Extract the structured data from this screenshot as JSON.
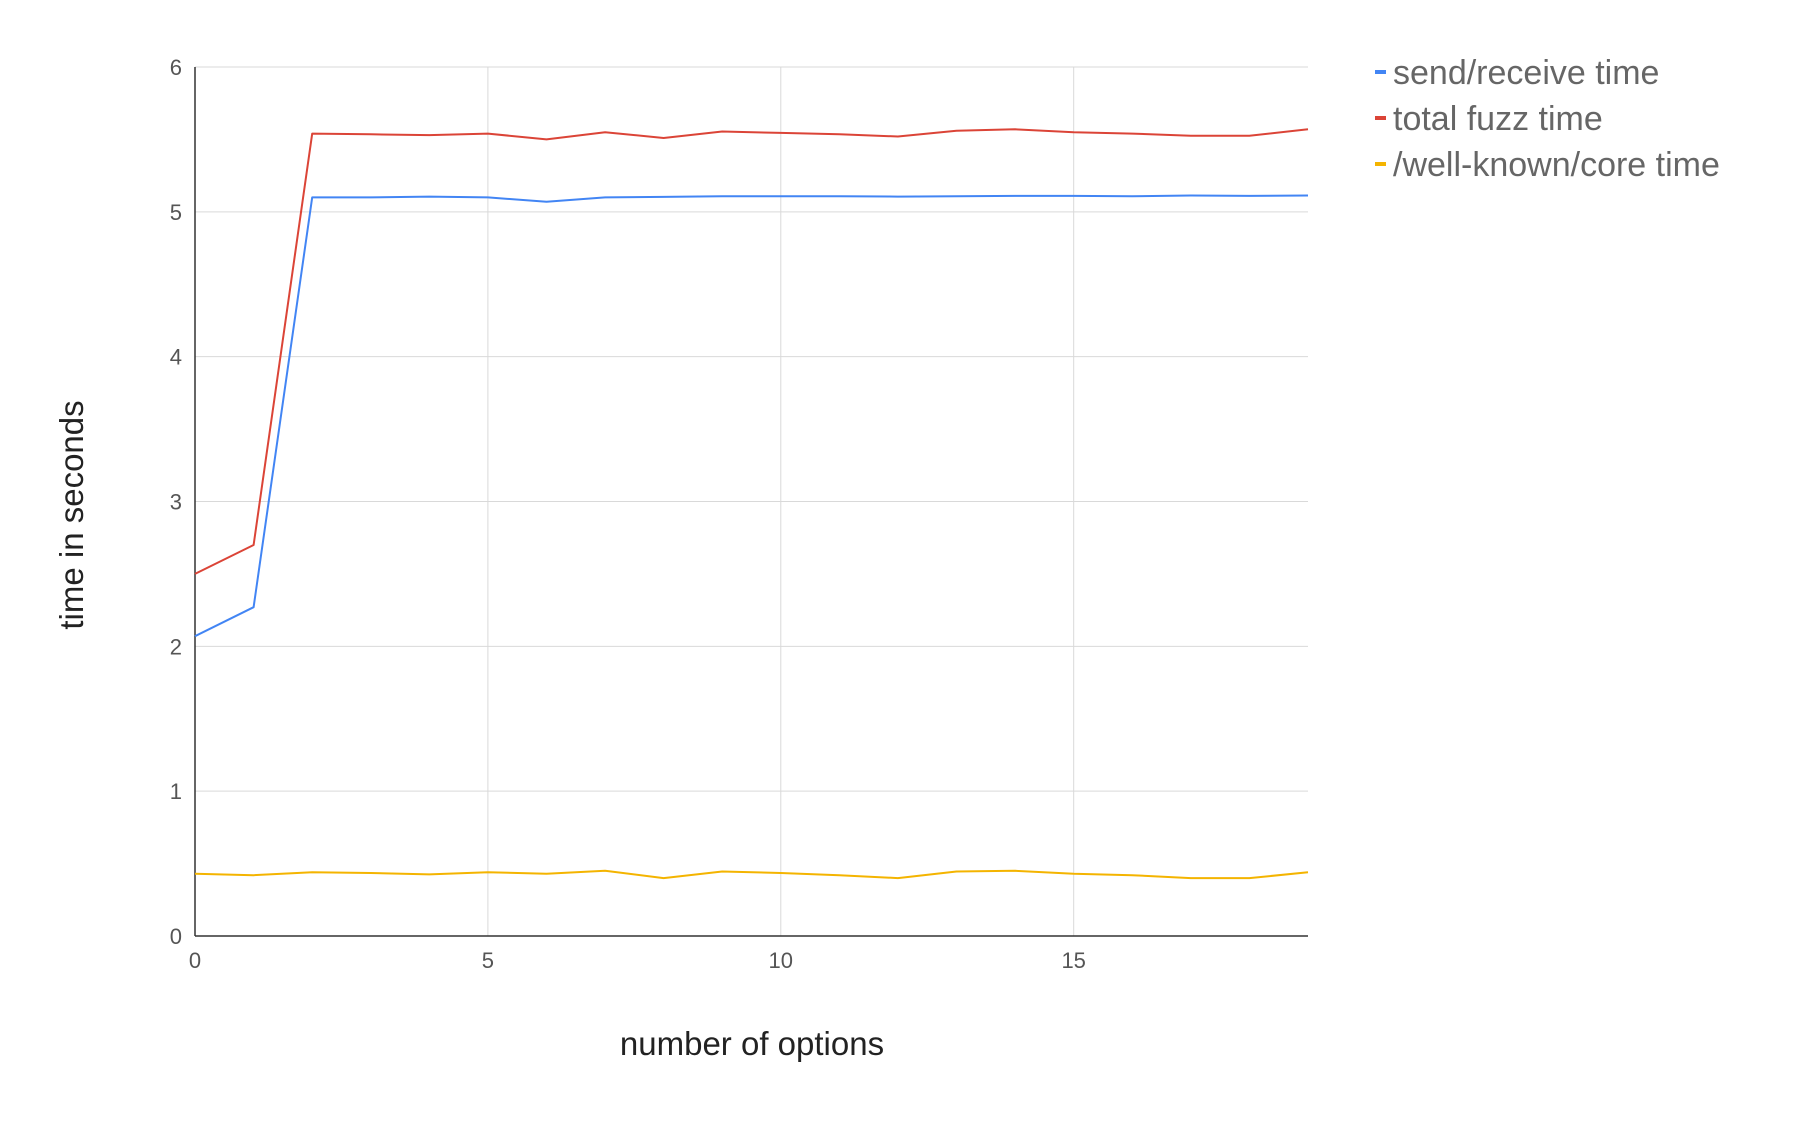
{
  "chart_data": {
    "type": "line",
    "title": "",
    "xlabel": "number of options",
    "ylabel": "time in seconds",
    "xlim": [
      0,
      19
    ],
    "ylim": [
      0,
      6
    ],
    "x_ticks": [
      0,
      5,
      10,
      15
    ],
    "y_ticks": [
      0,
      1,
      2,
      3,
      4,
      5,
      6
    ],
    "grid": true,
    "legend_position": "right-top",
    "x": [
      0,
      1,
      2,
      3,
      4,
      5,
      6,
      7,
      8,
      9,
      10,
      11,
      12,
      13,
      14,
      15,
      16,
      17,
      18,
      19
    ],
    "series": [
      {
        "name": "send/receive time",
        "color": "#4285f4",
        "values": [
          2.07,
          2.27,
          5.1,
          5.1,
          5.105,
          5.1,
          5.07,
          5.1,
          5.103,
          5.107,
          5.107,
          5.107,
          5.105,
          5.107,
          5.11,
          5.11,
          5.107,
          5.113,
          5.11,
          5.113
        ]
      },
      {
        "name": "total fuzz time",
        "color": "#db4437",
        "values": [
          2.5,
          2.7,
          5.54,
          5.535,
          5.53,
          5.54,
          5.5,
          5.55,
          5.51,
          5.555,
          5.545,
          5.535,
          5.52,
          5.56,
          5.57,
          5.55,
          5.54,
          5.525,
          5.525,
          5.57
        ]
      },
      {
        "name": "/well-known/core time",
        "color": "#f4b400",
        "values": [
          0.43,
          0.42,
          0.44,
          0.435,
          0.425,
          0.44,
          0.43,
          0.45,
          0.4,
          0.445,
          0.435,
          0.42,
          0.4,
          0.445,
          0.45,
          0.43,
          0.42,
          0.4,
          0.4,
          0.44
        ]
      }
    ]
  }
}
